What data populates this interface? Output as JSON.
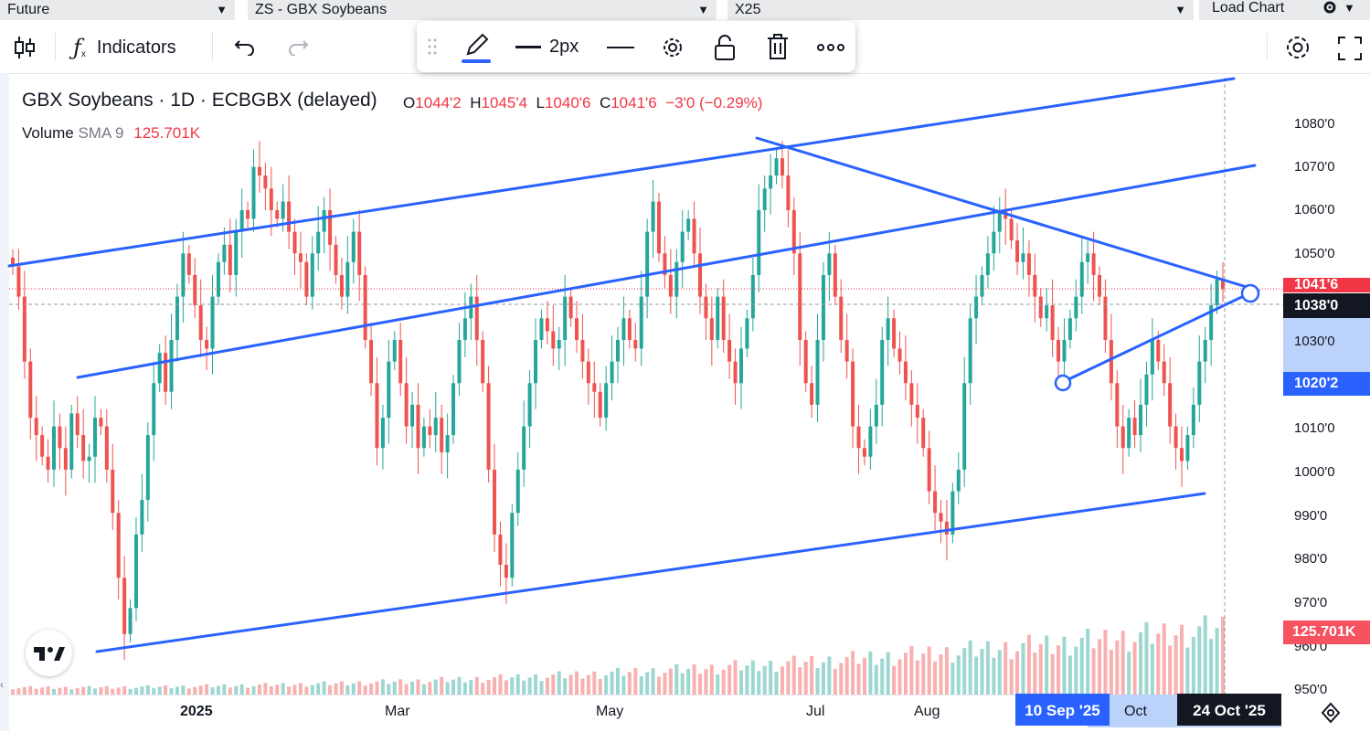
{
  "selectors": {
    "type": "Future",
    "symbol": "ZS - GBX Soybeans",
    "contract": "X25",
    "load_chart": "Load Chart"
  },
  "toolbar": {
    "indicators_label": "Indicators",
    "icons": [
      "candles-icon",
      "indicators-icon",
      "undo-icon",
      "redo-icon",
      "settings-icon",
      "fullscreen-icon"
    ]
  },
  "drawing_toolbar": {
    "width_label": "2px",
    "line_color": "#2962ff",
    "icons": [
      "drag-handle-icon",
      "pencil-icon",
      "line-width-icon",
      "line-style-icon",
      "gear-icon",
      "lock-icon",
      "trash-icon",
      "more-icon"
    ]
  },
  "legend": {
    "title": "GBX Soybeans · 1D · ECBGBX (delayed)",
    "o_label": "O",
    "o_value": "1044'2",
    "h_label": "H",
    "h_value": "1045'4",
    "l_label": "L",
    "l_value": "1040'6",
    "c_label": "C",
    "c_value": "1041'6",
    "change": "−3'0 (−0.29%)",
    "volume_label": "Volume",
    "volume_sma": "SMA 9",
    "volume_value": "125.701K"
  },
  "price_axis": {
    "labels": [
      "1080'0",
      "1070'0",
      "1060'0",
      "1050'0",
      "1030'0",
      "1010'0",
      "1000'0",
      "990'0",
      "980'0",
      "970'0",
      "960'0",
      "950'0"
    ],
    "current_price_tag": "1041'6",
    "crosshair_price_tag": "1038'0",
    "range_low_tag": "1020'2",
    "volume_tag": "125.701K"
  },
  "time_axis": {
    "labels": [
      "2025",
      "Mar",
      "May",
      "Jul",
      "Aug",
      "Oct"
    ],
    "range_start_tag": "10 Sep '25",
    "range_end_tag": "24 Oct '25"
  },
  "colors": {
    "up": "#26a69a",
    "down": "#ef5350",
    "trendline": "#2962ff",
    "selection": "#bbd2fb"
  },
  "chart_data": {
    "type": "candlestick",
    "symbol": "GBX Soybeans",
    "interval": "1D",
    "ylim": [
      948,
      1090
    ],
    "closes_approx": [
      1047,
      1040,
      1025,
      1012,
      1008,
      1003,
      1000,
      1010,
      1005,
      1000,
      1013,
      1008,
      1002,
      1003,
      1012,
      1010,
      1000,
      990,
      975,
      962,
      968,
      985,
      993,
      1008,
      1020,
      1027,
      1018,
      1030,
      1040,
      1050,
      1045,
      1038,
      1030,
      1028,
      1040,
      1048,
      1052,
      1045,
      1055,
      1060,
      1058,
      1070,
      1068,
      1065,
      1060,
      1058,
      1062,
      1055,
      1050,
      1048,
      1040,
      1050,
      1055,
      1060,
      1052,
      1045,
      1040,
      1048,
      1055,
      1045,
      1030,
      1020,
      1005,
      1012,
      1025,
      1030,
      1020,
      1010,
      1015,
      1005,
      1010,
      1008,
      1012,
      1004,
      1008,
      1020,
      1030,
      1035,
      1040,
      1030,
      1020,
      1000,
      985,
      978,
      975,
      990,
      1000,
      1010,
      1020,
      1030,
      1035,
      1032,
      1028,
      1030,
      1040,
      1035,
      1030,
      1025,
      1020,
      1018,
      1012,
      1020,
      1025,
      1030,
      1035,
      1030,
      1028,
      1040,
      1055,
      1062,
      1050,
      1045,
      1040,
      1048,
      1055,
      1058,
      1050,
      1040,
      1035,
      1030,
      1040,
      1030,
      1025,
      1020,
      1028,
      1035,
      1045,
      1060,
      1065,
      1068,
      1072,
      1068,
      1060,
      1050,
      1030,
      1020,
      1015,
      1030,
      1045,
      1050,
      1040,
      1030,
      1025,
      1010,
      1005,
      1003,
      1010,
      1015,
      1030,
      1035,
      1028,
      1025,
      1020,
      1015,
      1012,
      1005,
      995,
      990,
      988,
      985,
      995,
      1000,
      1020,
      1035,
      1040,
      1045,
      1050,
      1055,
      1060,
      1058,
      1053,
      1048,
      1050,
      1045,
      1040,
      1035,
      1038,
      1030,
      1025,
      1030,
      1035,
      1040,
      1048,
      1050,
      1045,
      1040,
      1030,
      1020,
      1010,
      1005,
      1012,
      1008,
      1015,
      1022,
      1030,
      1025,
      1020,
      1010,
      1005,
      1002,
      1008,
      1015,
      1025,
      1030,
      1038,
      1044,
      1041.75
    ]
  }
}
